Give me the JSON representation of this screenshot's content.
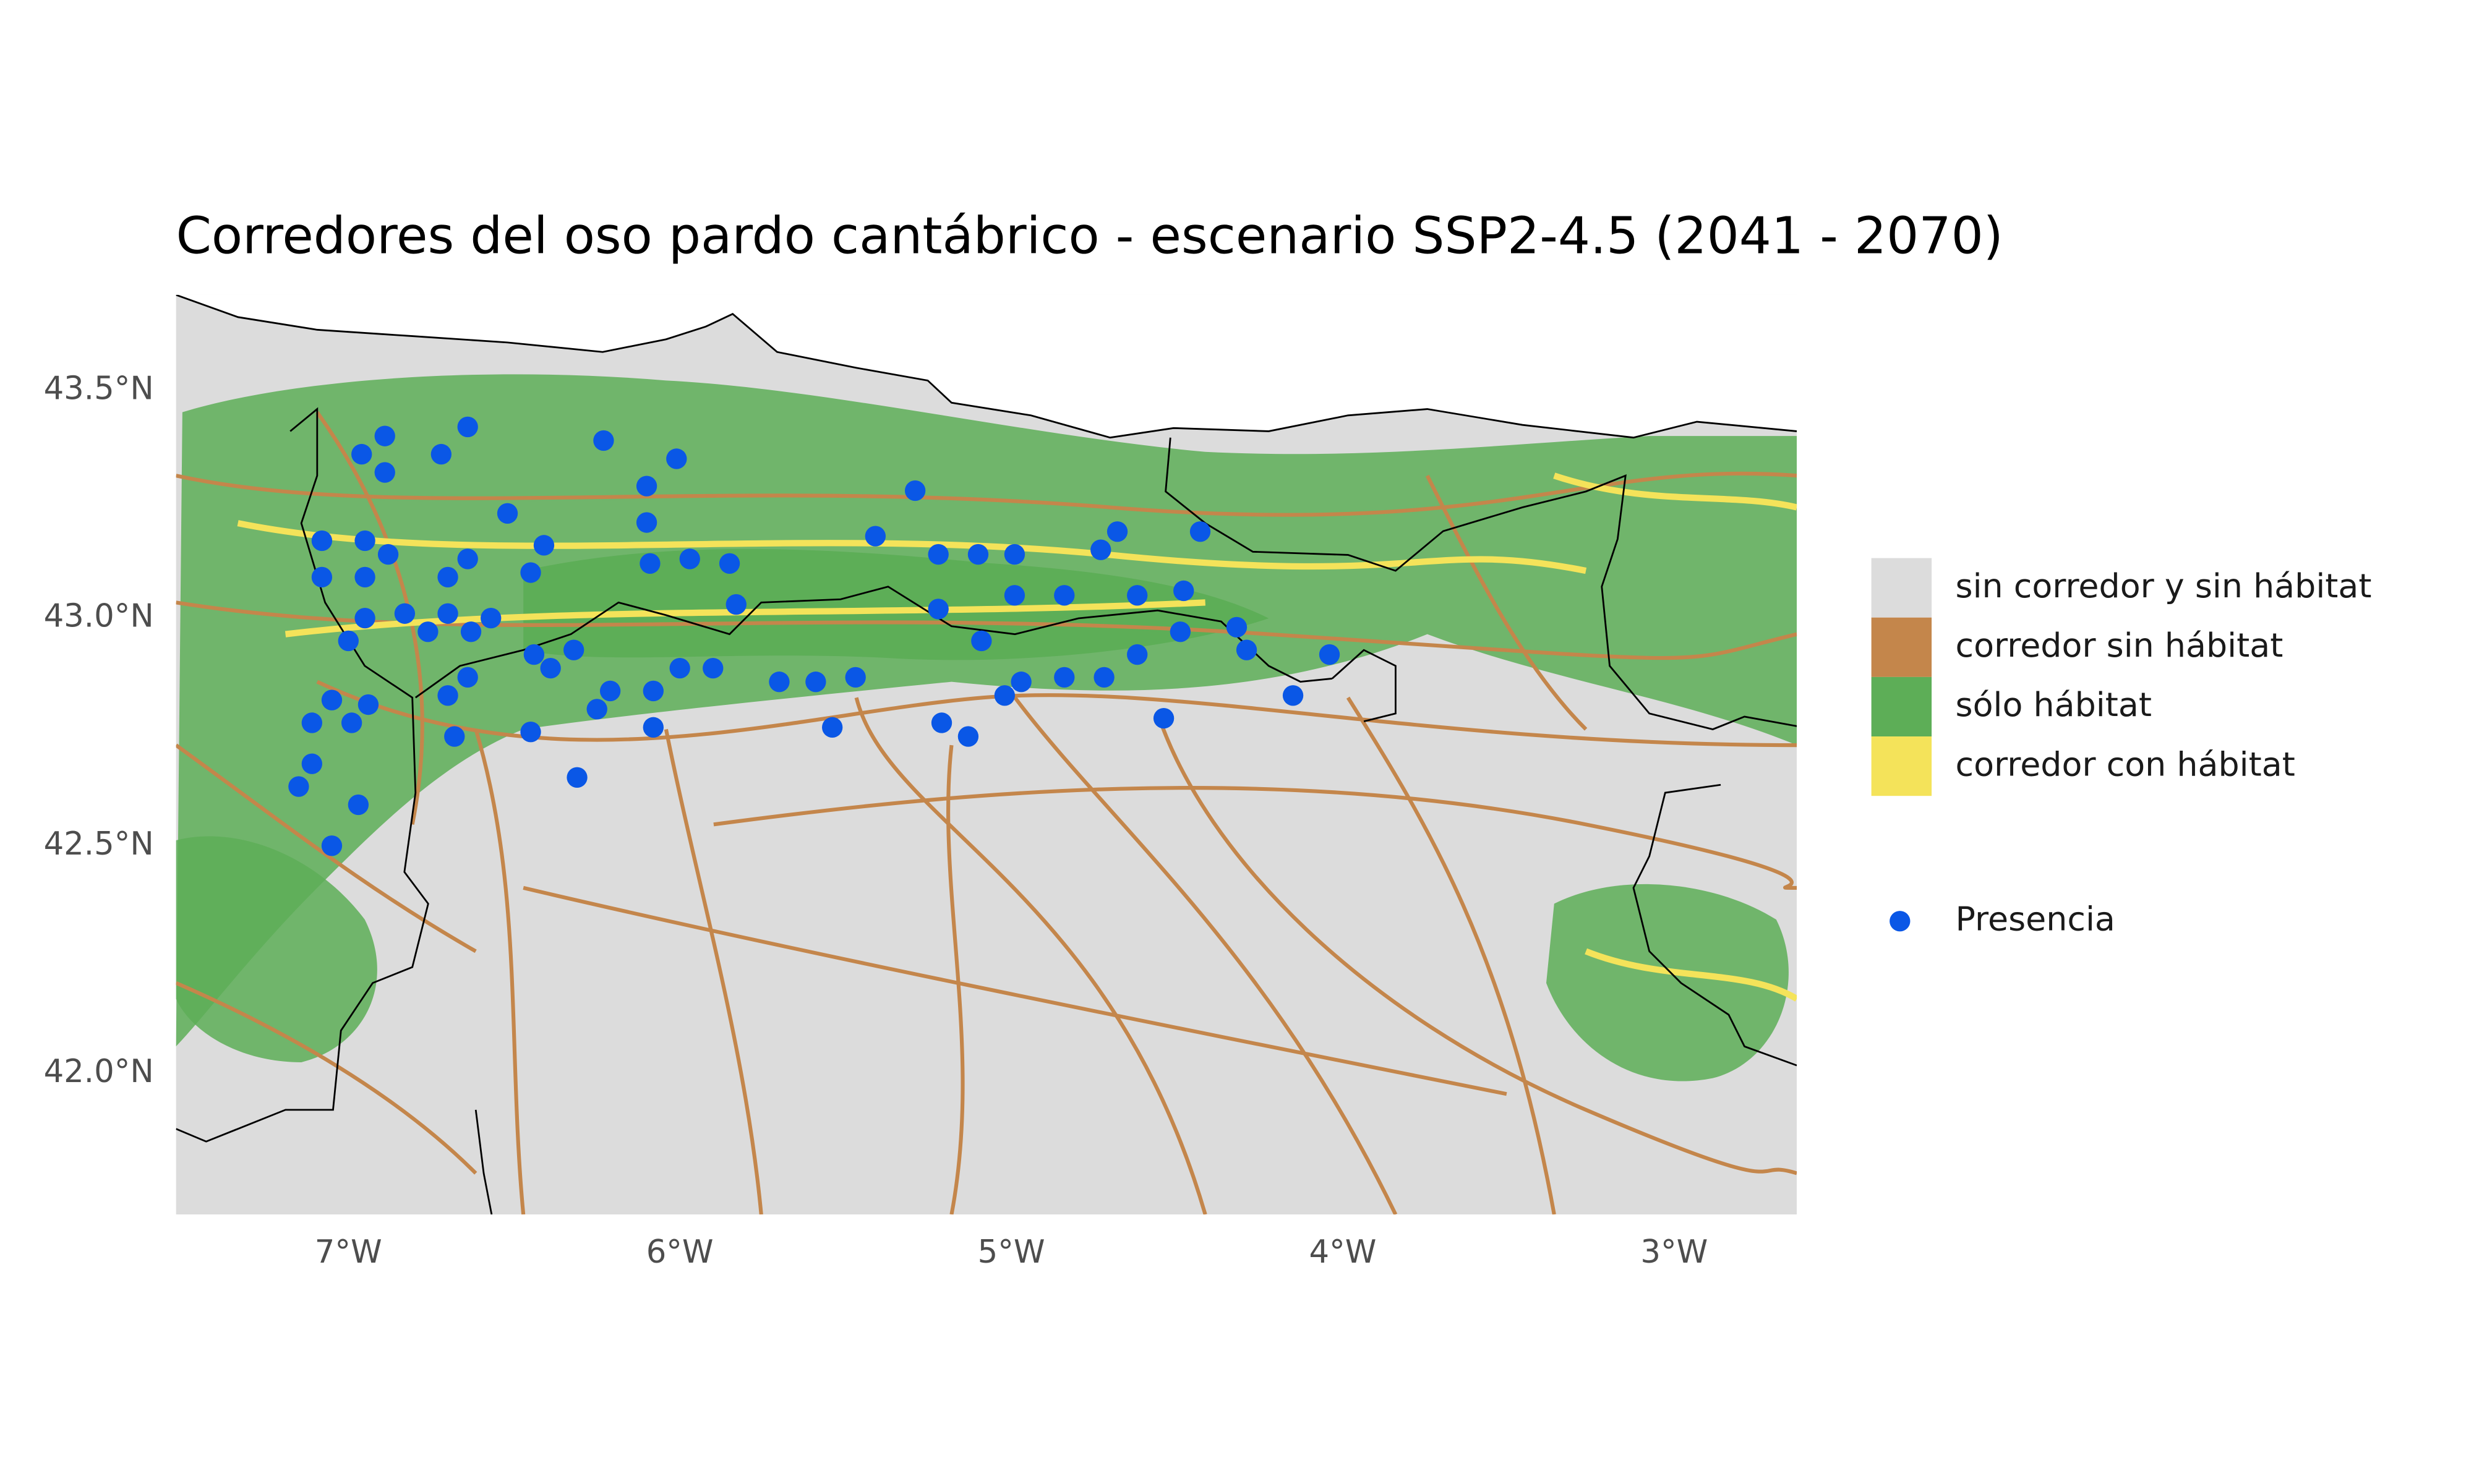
{
  "chart_data": {
    "type": "scatter",
    "title": "Corredores del oso pardo cantábrico - escenario SSP2-4.5 (2041 - 2070)",
    "xlim": [
      -7.52,
      -2.63
    ],
    "ylim": [
      41.69,
      43.71
    ],
    "xticks": [
      {
        "value": -7,
        "label": "7°W"
      },
      {
        "value": -6,
        "label": "6°W"
      },
      {
        "value": -5,
        "label": "5°W"
      },
      {
        "value": -4,
        "label": "4°W"
      },
      {
        "value": -3,
        "label": "3°W"
      }
    ],
    "yticks": [
      {
        "value": 42.0,
        "label": "42.0°N"
      },
      {
        "value": 42.5,
        "label": "42.5°N"
      },
      {
        "value": 43.0,
        "label": "43.0°N"
      },
      {
        "value": 43.5,
        "label": "43.5°N"
      }
    ],
    "classes": [
      {
        "name": "sin corredor y sin hábitat",
        "color": "#dcdcdc"
      },
      {
        "name": "corredor sin hábitat",
        "color": "#c4864b"
      },
      {
        "name": "sólo hábitat",
        "color": "#5dae57"
      },
      {
        "name": "corredor con hábitat",
        "color": "#f4e35a"
      }
    ],
    "series": [
      {
        "name": "Presencia",
        "color": "#0a57e6",
        "x": [
          -6.89,
          -6.96,
          -6.89,
          -6.64,
          -6.72,
          -6.23,
          -6.1,
          -6.01,
          -5.29,
          -6.52,
          -7.08,
          -6.95,
          -6.88,
          -7.08,
          -6.95,
          -6.64,
          -6.41,
          -6.45,
          -6.1,
          -6.09,
          -5.97,
          -5.85,
          -5.41,
          -5.22,
          -5.1,
          -4.99,
          -4.73,
          -4.68,
          -4.43,
          -6.95,
          -6.83,
          -6.7,
          -6.7,
          -6.57,
          -7.0,
          -6.76,
          -6.63,
          -5.83,
          -5.22,
          -4.99,
          -4.84,
          -4.62,
          -4.48,
          -6.44,
          -6.39,
          -6.32,
          -6.0,
          -5.9,
          -5.09,
          -4.49,
          -4.32,
          -4.29,
          -4.04,
          -4.62,
          -7.05,
          -6.94,
          -6.7,
          -6.64,
          -6.21,
          -6.08,
          -6.25,
          -7.11,
          -6.99,
          -5.7,
          -5.59,
          -5.47,
          -5.02,
          -4.97,
          -4.84,
          -4.72,
          -4.15,
          -6.68,
          -6.45,
          -6.08,
          -5.54,
          -5.21,
          -5.13,
          -4.54,
          -7.11,
          -7.15,
          -6.97,
          -6.31,
          -7.05
        ],
        "y": [
          43.4,
          43.36,
          43.32,
          43.42,
          43.36,
          43.39,
          43.29,
          43.35,
          43.28,
          43.23,
          43.17,
          43.17,
          43.14,
          43.09,
          43.09,
          43.13,
          43.16,
          43.1,
          43.21,
          43.12,
          43.13,
          43.12,
          43.18,
          43.14,
          43.14,
          43.14,
          43.15,
          43.19,
          43.19,
          43.0,
          43.01,
          43.09,
          43.01,
          43.0,
          42.95,
          42.97,
          42.97,
          43.03,
          43.02,
          43.05,
          43.05,
          43.05,
          43.06,
          42.92,
          42.89,
          42.93,
          42.89,
          42.89,
          42.95,
          42.97,
          42.98,
          42.93,
          42.92,
          42.92,
          42.82,
          42.81,
          42.83,
          42.87,
          42.84,
          42.84,
          42.8,
          42.77,
          42.77,
          42.86,
          42.86,
          42.87,
          42.83,
          42.86,
          42.87,
          42.87,
          42.83,
          42.74,
          42.75,
          42.76,
          42.76,
          42.77,
          42.74,
          42.78,
          42.68,
          42.63,
          42.59,
          42.65,
          42.5
        ]
      }
    ]
  }
}
